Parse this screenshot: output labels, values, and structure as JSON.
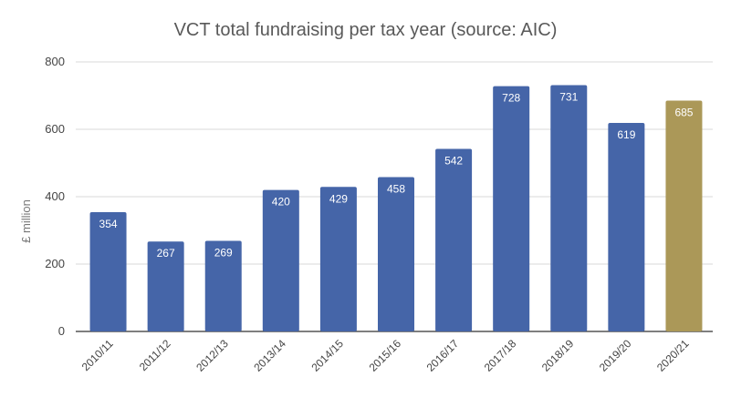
{
  "chart_data": {
    "type": "bar",
    "title": "VCT total fundraising per tax year (source: AIC)",
    "xlabel": "",
    "ylabel": "£ million",
    "ylim": [
      0,
      800
    ],
    "yticks": [
      0,
      200,
      400,
      600,
      800
    ],
    "grid": true,
    "categories": [
      "2010/11",
      "2011/12",
      "2012/13",
      "2013/14",
      "2014/15",
      "2015/16",
      "2016/17",
      "2017/18",
      "2018/19",
      "2019/20",
      "2020/21"
    ],
    "values": [
      354,
      267,
      269,
      420,
      429,
      458,
      542,
      728,
      731,
      619,
      685
    ],
    "colors": [
      "#4565a8",
      "#4565a8",
      "#4565a8",
      "#4565a8",
      "#4565a8",
      "#4565a8",
      "#4565a8",
      "#4565a8",
      "#4565a8",
      "#4565a8",
      "#ab9858"
    ],
    "data_labels": true
  }
}
